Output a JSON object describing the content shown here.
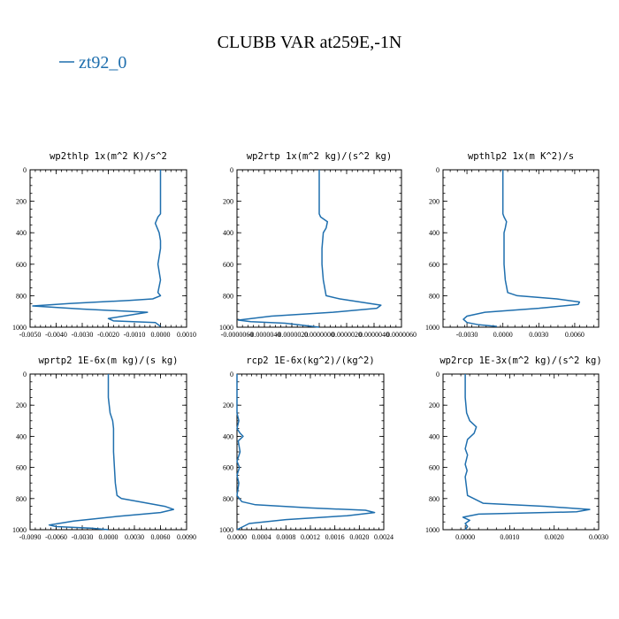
{
  "figure": {
    "title": "CLUBB VAR at259E,-1N",
    "legend_label": "zt92_0",
    "series_color": "#1f6fae"
  },
  "chart_data": [
    {
      "type": "line",
      "title": "wp2thlp  1x(m^2 K)/s^2",
      "xlim": [
        -0.005,
        0.001
      ],
      "ylim": [
        1000,
        0
      ],
      "xticks": [
        -0.005,
        -0.004,
        -0.003,
        -0.002,
        -0.001,
        0.0,
        0.001
      ],
      "xticklabels": [
        "-0.0050",
        "-0.0040",
        "-0.0030",
        "-0.0020",
        "-0.0010",
        "0.0000",
        "0.0010"
      ],
      "yticks": [
        0,
        200,
        400,
        600,
        800,
        1000
      ],
      "yticklabels": [
        "0",
        "200",
        "400",
        "600",
        "800",
        "1000"
      ],
      "series": [
        {
          "name": "zt92_0",
          "x": [
            0.0,
            0.0,
            0.0,
            -0.0001,
            -0.0002,
            -5e-05,
            0.0,
            0.0,
            -0.0001,
            0.0,
            -0.0001,
            0.0,
            -0.0003,
            -0.0012,
            -0.0035,
            -0.0049,
            -0.003,
            -0.0005,
            -0.002,
            -0.0018,
            -0.0002,
            0.0
          ],
          "y": [
            0,
            100,
            280,
            300,
            340,
            400,
            450,
            500,
            600,
            700,
            780,
            800,
            820,
            830,
            850,
            865,
            885,
            905,
            945,
            960,
            970,
            995
          ]
        }
      ]
    },
    {
      "type": "line",
      "title": "wp2rtp  1x(m^2 kg)/(s^2 kg)",
      "xlim": [
        -6e-06,
        6e-06
      ],
      "ylim": [
        1000,
        0
      ],
      "xticks": [
        -6e-06,
        -4e-06,
        -2e-06,
        0.0,
        2e-06,
        4e-06,
        6e-06
      ],
      "xticklabels": [
        "-0.0000060",
        "-0.0000040",
        "-0.0000020",
        "0.0000000",
        "0.0000020",
        "0.0000040",
        "0.0000060"
      ],
      "yticks": [
        0,
        200,
        400,
        600,
        800,
        1000
      ],
      "yticklabels": [
        "0",
        "200",
        "400",
        "600",
        "800",
        "1000"
      ],
      "series": [
        {
          "name": "zt92_0",
          "x": [
            0.0,
            0.0,
            0.0,
            1e-07,
            6e-07,
            5e-07,
            3e-07,
            2e-07,
            2e-07,
            3e-07,
            5e-07,
            1.5e-06,
            4.5e-06,
            4.2e-06,
            1e-06,
            -3.5e-06,
            -5.9e-06,
            -5e-06,
            -2.5e-06,
            0.0
          ],
          "y": [
            0,
            150,
            280,
            300,
            330,
            370,
            400,
            500,
            600,
            700,
            800,
            820,
            860,
            880,
            905,
            930,
            955,
            965,
            975,
            1000
          ]
        }
      ]
    },
    {
      "type": "line",
      "title": "wpthlp2  1x(m K^2)/s",
      "xlim": [
        -0.005,
        0.008
      ],
      "ylim": [
        1000,
        0
      ],
      "xticks": [
        -0.003,
        0.0,
        0.003,
        0.006
      ],
      "xticklabels": [
        "-0.0030",
        "0.0000",
        "0.0030",
        "0.0060"
      ],
      "yticks": [
        0,
        200,
        400,
        600,
        800,
        1000
      ],
      "yticklabels": [
        "0",
        "200",
        "400",
        "600",
        "800",
        "1000"
      ],
      "series": [
        {
          "name": "zt92_0",
          "x": [
            0.0,
            0.0,
            0.0,
            0.0001,
            0.0003,
            0.0002,
            0.0001,
            0.0001,
            0.0002,
            0.0004,
            0.0012,
            0.0045,
            0.0064,
            0.0063,
            0.003,
            -0.0015,
            -0.003,
            -0.0033,
            -0.003,
            -0.002,
            -0.0005
          ],
          "y": [
            0,
            150,
            280,
            300,
            330,
            370,
            400,
            600,
            700,
            780,
            800,
            820,
            840,
            855,
            880,
            905,
            930,
            950,
            970,
            985,
            995
          ]
        }
      ]
    },
    {
      "type": "line",
      "title": "wprtp2  1E-6x(m kg)/(s kg)",
      "xlim": [
        -0.009,
        0.009
      ],
      "ylim": [
        1000,
        0
      ],
      "xticks": [
        -0.009,
        -0.006,
        -0.003,
        0.0,
        0.003,
        0.006,
        0.009
      ],
      "xticklabels": [
        "-0.0090",
        "-0.0060",
        "-0.0030",
        "0.0000",
        "0.0030",
        "0.0060",
        "0.0090"
      ],
      "yticks": [
        0,
        200,
        400,
        600,
        800,
        1000
      ],
      "yticklabels": [
        "0",
        "200",
        "400",
        "600",
        "800",
        "1000"
      ],
      "series": [
        {
          "name": "zt92_0",
          "x": [
            0.0,
            0.0,
            0.0002,
            0.0005,
            0.0006,
            0.0006,
            0.0007,
            0.0008,
            0.001,
            0.0015,
            0.0035,
            0.0065,
            0.0075,
            0.006,
            0.001,
            -0.004,
            -0.0068,
            -0.006,
            -0.002,
            0.0
          ],
          "y": [
            0,
            150,
            250,
            300,
            350,
            500,
            600,
            700,
            780,
            800,
            820,
            850,
            870,
            890,
            915,
            945,
            970,
            980,
            990,
            1000
          ]
        }
      ]
    },
    {
      "type": "line",
      "title": "rcp2  1E-6x(kg^2)/(kg^2)",
      "xlim": [
        0.0,
        0.0024
      ],
      "ylim": [
        1000,
        0
      ],
      "xticks": [
        0.0,
        0.0004,
        0.0008,
        0.0012,
        0.0016,
        0.002,
        0.0024
      ],
      "xticklabels": [
        "0.0000",
        "0.0004",
        "0.0008",
        "0.0012",
        "0.0016",
        "0.0020",
        "0.0024"
      ],
      "yticks": [
        0,
        200,
        400,
        600,
        800,
        1000
      ],
      "yticklabels": [
        "0",
        "200",
        "400",
        "600",
        "800",
        "1000"
      ],
      "series": [
        {
          "name": "zt92_0",
          "x": [
            0.0,
            0.0,
            3e-05,
            0.0,
            5e-05,
            0.0001,
            2e-05,
            5e-05,
            0.0,
            4e-05,
            0.0,
            3e-05,
            0.0,
            8e-05,
            0.0003,
            0.0012,
            0.0021,
            0.00225,
            0.0018,
            0.0008,
            0.0002,
            0.0
          ],
          "y": [
            0,
            250,
            300,
            350,
            380,
            400,
            430,
            500,
            560,
            600,
            650,
            700,
            780,
            820,
            840,
            860,
            875,
            890,
            910,
            935,
            960,
            1000
          ]
        }
      ]
    },
    {
      "type": "line",
      "title": "wp2rcp  1E-3x(m^2 kg)/(s^2 kg)",
      "xlim": [
        -0.0005,
        0.003
      ],
      "ylim": [
        1000,
        0
      ],
      "xticks": [
        0.0,
        0.001,
        0.002,
        0.003
      ],
      "xticklabels": [
        "0.0000",
        "0.0010",
        "0.0020",
        "0.0030"
      ],
      "yticks": [
        0,
        200,
        400,
        600,
        800,
        1000
      ],
      "yticklabels": [
        "0",
        "200",
        "400",
        "600",
        "800",
        "1000"
      ],
      "series": [
        {
          "name": "zt92_0",
          "x": [
            0.0,
            0.0,
            3e-05,
            0.0001,
            0.00025,
            0.0002,
            5e-05,
            0.0,
            5e-05,
            0.0,
            4e-05,
            0.0,
            5e-05,
            0.0004,
            0.0018,
            0.0028,
            0.0025,
            0.0003,
            -5e-05,
            0.0001,
            0.0,
            5e-05,
            0.0
          ],
          "y": [
            0,
            150,
            250,
            300,
            340,
            380,
            420,
            480,
            520,
            580,
            620,
            660,
            780,
            830,
            850,
            870,
            885,
            900,
            920,
            940,
            960,
            980,
            1000
          ]
        }
      ]
    }
  ]
}
